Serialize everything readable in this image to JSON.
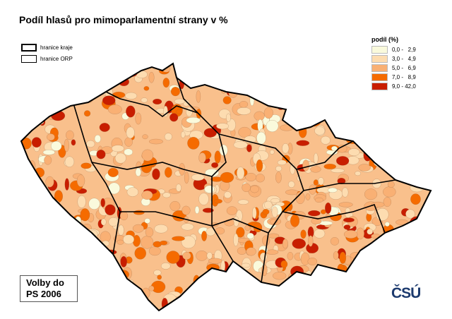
{
  "title": "Podíl hlasů pro mimoparlamentní strany v %",
  "boundary_legend": [
    {
      "label": "hranice kraje"
    },
    {
      "label": "hranice ORP"
    }
  ],
  "legend": {
    "title": "podíl (%)",
    "items": [
      {
        "label": "0,0 -   2,9",
        "color": "#fafadc"
      },
      {
        "label": "3,0 -   4,9",
        "color": "#fddcb0"
      },
      {
        "label": "5,0 -   6,9",
        "color": "#f9b074"
      },
      {
        "label": "7,0 -   8,9",
        "color": "#f56b00"
      },
      {
        "label": "9,0 - 42,0",
        "color": "#c81e00"
      }
    ]
  },
  "election_box": {
    "line1": "Volby do",
    "line2": "PS 2006"
  },
  "logo": "ČSÚ"
}
